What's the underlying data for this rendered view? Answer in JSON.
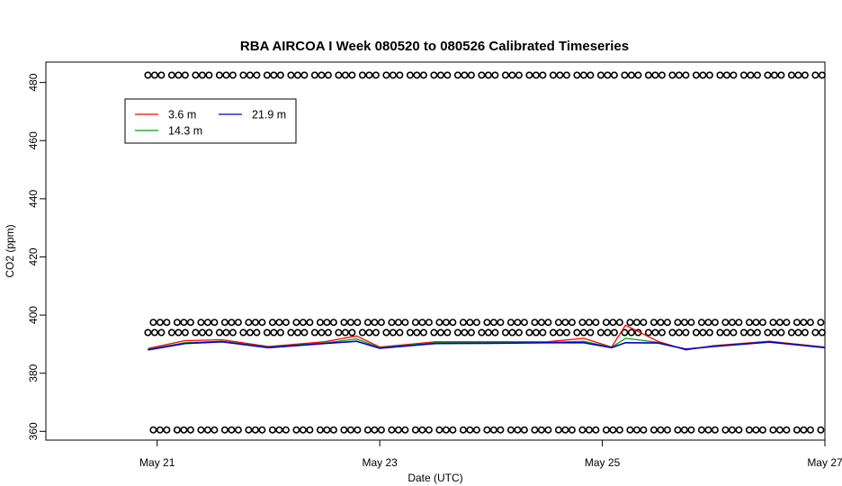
{
  "chart_data": {
    "type": "line",
    "title": "RBA AIRCOA I  Week 080520 to 080526  Calibrated Timeseries",
    "xlabel": "Date (UTC)",
    "ylabel": "CO2 (ppm)",
    "xlim": [
      "2008-05-20 00:00",
      "2008-05-27 00:00"
    ],
    "ylim": [
      357,
      487
    ],
    "x_ticks": [
      {
        "date": "2008-05-21",
        "label": "May 21"
      },
      {
        "date": "2008-05-23",
        "label": "May 23"
      },
      {
        "date": "2008-05-25",
        "label": "May 25"
      },
      {
        "date": "2008-05-27",
        "label": "May 27"
      }
    ],
    "y_ticks": [
      360,
      380,
      400,
      420,
      440,
      460,
      480
    ],
    "legend": {
      "position": "top-left",
      "entries": [
        {
          "label": "3.6 m",
          "color": "#ff0000"
        },
        {
          "label": "14.3 m",
          "color": "#00a000"
        },
        {
          "label": "21.9 m",
          "color": "#0000cc"
        }
      ]
    },
    "series": [
      {
        "name": "3.6 m",
        "color": "#ff0000",
        "x": [
          "2008-05-20 22:00",
          "2008-05-21 06:00",
          "2008-05-21 14:00",
          "2008-05-22 00:00",
          "2008-05-22 12:00",
          "2008-05-22 19:00",
          "2008-05-23 00:00",
          "2008-05-23 12:00",
          "2008-05-24 00:00",
          "2008-05-24 12:00",
          "2008-05-24 20:00",
          "2008-05-25 02:00",
          "2008-05-25 05:00",
          "2008-05-25 12:00",
          "2008-05-25 18:00",
          "2008-05-26 00:00",
          "2008-05-26 12:00",
          "2008-05-27 00:00"
        ],
        "y": [
          388.5,
          391.2,
          391.5,
          389.2,
          390.8,
          392.8,
          389.0,
          390.8,
          390.8,
          390.8,
          392.0,
          389.0,
          396.5,
          391.0,
          388.0,
          389.5,
          391.0,
          389.0
        ]
      },
      {
        "name": "14.3 m",
        "color": "#00a000",
        "x": [
          "2008-05-20 22:00",
          "2008-05-21 06:00",
          "2008-05-21 14:00",
          "2008-05-22 00:00",
          "2008-05-22 12:00",
          "2008-05-22 19:00",
          "2008-05-23 00:00",
          "2008-05-23 12:00",
          "2008-05-24 00:00",
          "2008-05-24 12:00",
          "2008-05-24 20:00",
          "2008-05-25 02:00",
          "2008-05-25 05:00",
          "2008-05-25 12:00",
          "2008-05-25 18:00",
          "2008-05-26 00:00",
          "2008-05-26 12:00",
          "2008-05-27 00:00"
        ],
        "y": [
          388.2,
          390.5,
          391.0,
          389.0,
          390.4,
          391.8,
          388.8,
          390.5,
          390.5,
          390.6,
          391.0,
          388.9,
          392.0,
          390.6,
          388.2,
          389.3,
          390.8,
          388.9
        ]
      },
      {
        "name": "21.9 m",
        "color": "#0000cc",
        "x": [
          "2008-05-20 22:00",
          "2008-05-21 06:00",
          "2008-05-21 14:00",
          "2008-05-22 00:00",
          "2008-05-22 12:00",
          "2008-05-22 19:00",
          "2008-05-23 00:00",
          "2008-05-23 12:00",
          "2008-05-24 00:00",
          "2008-05-24 12:00",
          "2008-05-24 20:00",
          "2008-05-25 02:00",
          "2008-05-25 05:00",
          "2008-05-25 12:00",
          "2008-05-25 18:00",
          "2008-05-26 00:00",
          "2008-05-26 12:00",
          "2008-05-27 00:00"
        ],
        "y": [
          388.0,
          390.2,
          390.8,
          388.8,
          390.2,
          391.0,
          388.6,
          390.2,
          390.3,
          390.5,
          390.5,
          388.8,
          390.5,
          390.4,
          388.3,
          389.2,
          390.7,
          388.8
        ]
      }
    ],
    "calibration_points": {
      "marker": "o",
      "levels": [
        482.5,
        397.5,
        394.0,
        360.5
      ],
      "x_start": "2008-05-20 22:00",
      "x_end": "2008-05-27 00:00"
    },
    "grid": false
  }
}
